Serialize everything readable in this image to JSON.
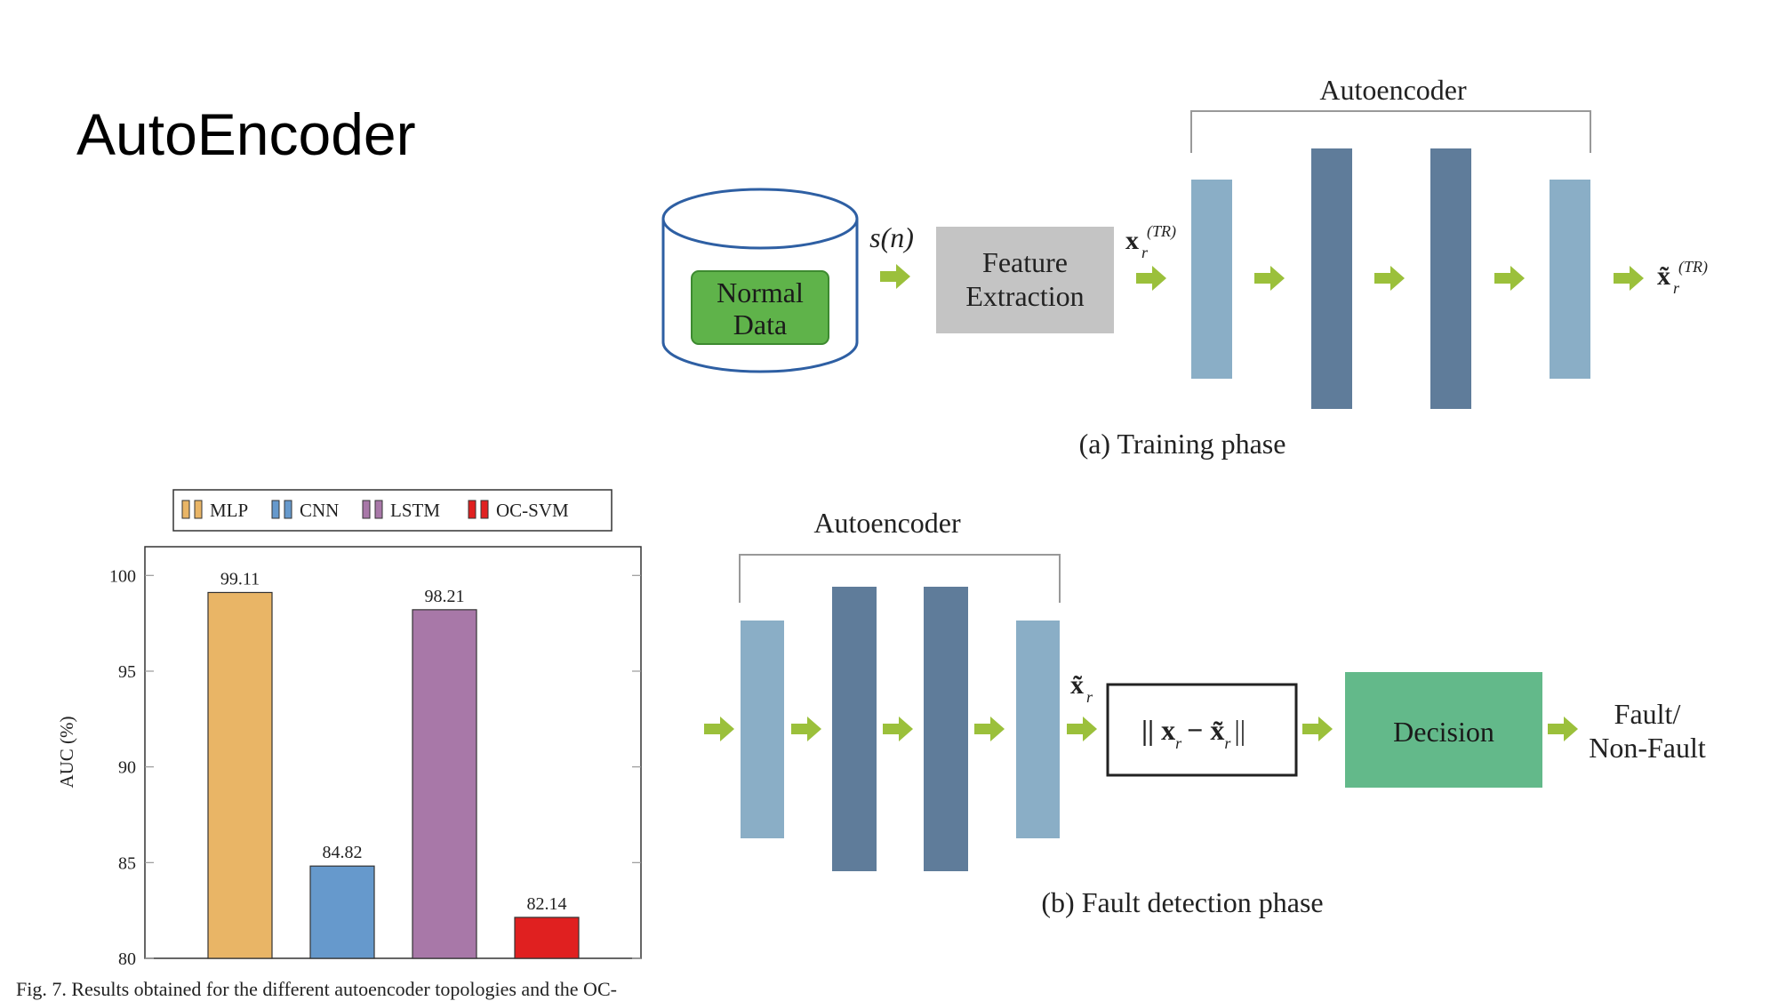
{
  "slide": {
    "title": "AutoEncoder"
  },
  "training": {
    "database_label_line1": "Normal",
    "database_label_line2": "Data",
    "signal": "s(n)",
    "feature_line1": "Feature",
    "feature_line2": "Extraction",
    "input_vec": "x",
    "input_sub": "r",
    "input_sup": "(TR)",
    "output_vec": "x̃",
    "output_sub": "r",
    "output_sup": "(TR)",
    "autoencoder_label": "Autoencoder",
    "caption": "(a) Training phase"
  },
  "detection": {
    "autoencoder_label": "Autoencoder",
    "recon_vec": "x̃",
    "recon_sub": "r",
    "norm_text": "|| x",
    "norm_sub1": "r",
    "norm_minus": "− x̃",
    "norm_sub2": "r",
    "norm_close": "||",
    "decision": "Decision",
    "output_line1": "Fault/",
    "output_line2": "Non-Fault",
    "caption": "(b) Fault detection phase"
  },
  "colors": {
    "light_layer": "#8aaec6",
    "dark_layer": "#5f7c9a",
    "arrow": "#9bc03b",
    "normal_data": "#5fb34a",
    "feature_box": "#c4c4c4",
    "decision_box": "#63b98a",
    "db_outline": "#2e5fa3"
  },
  "chart_data": {
    "type": "bar",
    "categories": [
      "MLP",
      "CNN",
      "LSTM",
      "OC-SVM"
    ],
    "values": [
      99.11,
      84.82,
      98.21,
      82.14
    ],
    "value_labels": [
      "99.11",
      "84.82",
      "98.21",
      "82.14"
    ],
    "colors": [
      "#e9b566",
      "#6699cc",
      "#a878a8",
      "#e02020"
    ],
    "legend": [
      "MLP",
      "CNN",
      "LSTM",
      "OC-SVM"
    ],
    "legend_position": "top",
    "ylabel": "AUC (%)",
    "ylim": [
      80,
      101.5
    ],
    "yticks": [
      "80",
      "85",
      "90",
      "95",
      "100"
    ],
    "grid": false
  },
  "figure_caption": "Fig. 7.   Results obtained for the different autoencoder topologies and the OC-"
}
